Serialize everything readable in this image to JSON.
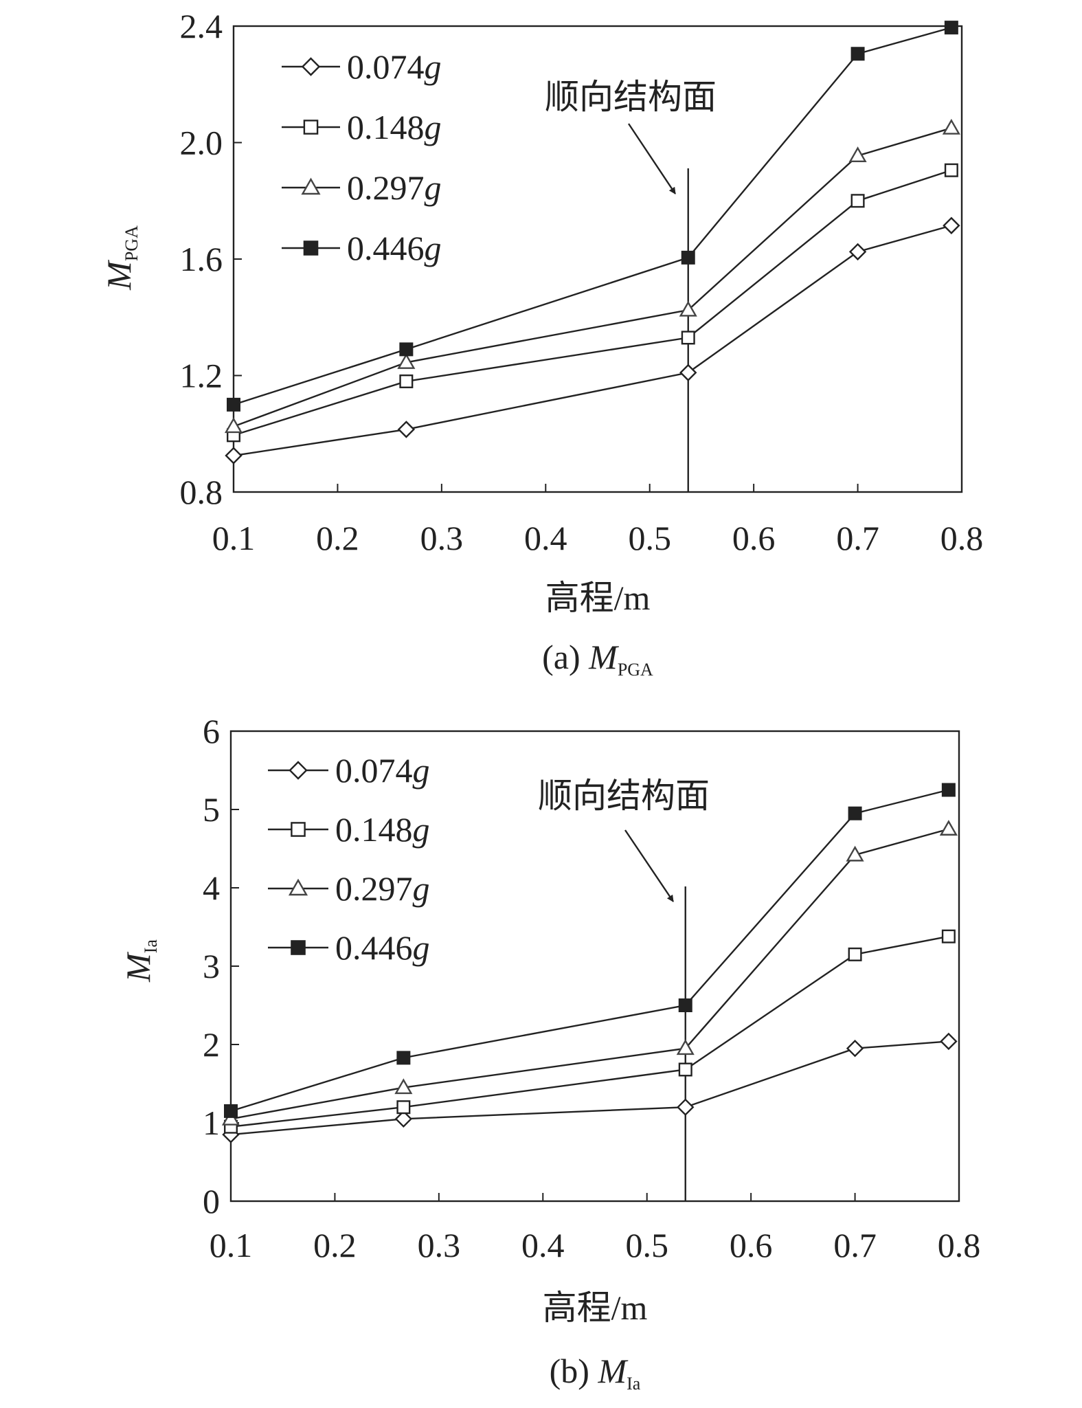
{
  "chart_data": [
    {
      "type": "line",
      "x": [
        0.1,
        0.266,
        0.537,
        0.7,
        0.79
      ],
      "xlim": [
        0.1,
        0.8
      ],
      "xticks": [
        "0.1",
        "0.2",
        "0.3",
        "0.4",
        "0.5",
        "0.6",
        "0.7",
        "0.8"
      ],
      "ylim": [
        0.8,
        2.4
      ],
      "yticks": [
        "0.8",
        "1.2",
        "1.6",
        "2.0",
        "2.4"
      ],
      "xlabel": "高程/m",
      "ylabel_main": "M",
      "ylabel_sub": "PGA",
      "caption_prefix": "(a) ",
      "caption_main": "M",
      "caption_sub": "PGA",
      "annotation": {
        "text": "顺向结构面",
        "x": 0.537
      },
      "series": [
        {
          "name": "0.074",
          "unit": "g",
          "marker": "diamond",
          "values": [
            0.925,
            1.015,
            1.21,
            1.625,
            1.715
          ]
        },
        {
          "name": "0.148",
          "unit": "g",
          "marker": "square",
          "values": [
            0.995,
            1.18,
            1.33,
            1.8,
            1.905
          ]
        },
        {
          "name": "0.297",
          "unit": "g",
          "marker": "triangle",
          "values": [
            1.025,
            1.245,
            1.425,
            1.955,
            2.05
          ]
        },
        {
          "name": "0.446",
          "unit": "g",
          "marker": "filled-square",
          "values": [
            1.1,
            1.29,
            1.605,
            2.305,
            2.395
          ]
        }
      ]
    },
    {
      "type": "line",
      "x": [
        0.1,
        0.266,
        0.537,
        0.7,
        0.79
      ],
      "xlim": [
        0.1,
        0.8
      ],
      "xticks": [
        "0.1",
        "0.2",
        "0.3",
        "0.4",
        "0.5",
        "0.6",
        "0.7",
        "0.8"
      ],
      "ylim": [
        0,
        6
      ],
      "yticks": [
        "0",
        "1",
        "2",
        "3",
        "4",
        "5",
        "6"
      ],
      "xlabel": "高程/m",
      "ylabel_main": "M",
      "ylabel_sub": "Ia",
      "caption_prefix": "(b) ",
      "caption_main": "M",
      "caption_sub": "Ia",
      "annotation": {
        "text": "顺向结构面",
        "x": 0.537
      },
      "series": [
        {
          "name": "0.074",
          "unit": "g",
          "marker": "diamond",
          "values": [
            0.85,
            1.05,
            1.2,
            1.95,
            2.04
          ]
        },
        {
          "name": "0.148",
          "unit": "g",
          "marker": "square",
          "values": [
            0.95,
            1.2,
            1.68,
            3.15,
            3.38
          ]
        },
        {
          "name": "0.297",
          "unit": "g",
          "marker": "triangle",
          "values": [
            1.05,
            1.45,
            1.95,
            4.42,
            4.75
          ]
        },
        {
          "name": "0.446",
          "unit": "g",
          "marker": "filled-square",
          "values": [
            1.15,
            1.83,
            2.5,
            4.95,
            5.25
          ]
        }
      ]
    }
  ]
}
